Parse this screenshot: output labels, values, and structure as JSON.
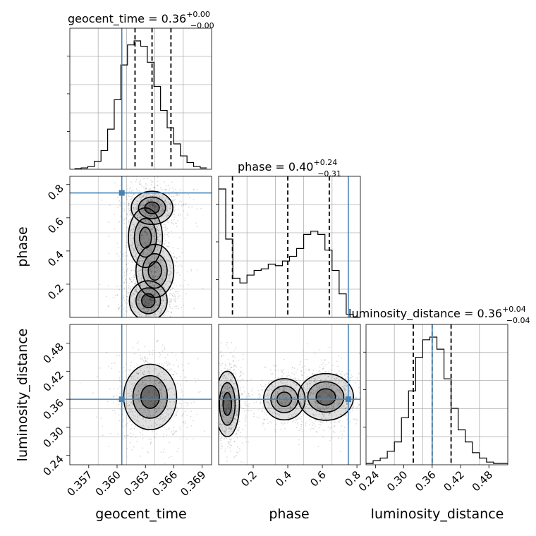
{
  "chart_data": [
    {
      "type": "histogram",
      "panel": "geocent_time marginal",
      "title": {
        "main": "geocent_time = 0.36",
        "sup": "+0.00",
        "sub": "−0.00"
      },
      "x_range": [
        0.355,
        0.37
      ],
      "bin_edges": [
        0.3555,
        0.3562,
        0.3569,
        0.3576,
        0.3583,
        0.359,
        0.3597,
        0.3604,
        0.3611,
        0.3618,
        0.3625,
        0.3632,
        0.3639,
        0.3646,
        0.3653,
        0.366,
        0.3667,
        0.3674,
        0.3681,
        0.3688,
        0.3695
      ],
      "counts": [
        0.005,
        0.01,
        0.02,
        0.06,
        0.14,
        0.3,
        0.52,
        0.78,
        0.93,
        0.96,
        0.92,
        0.8,
        0.62,
        0.44,
        0.31,
        0.19,
        0.1,
        0.05,
        0.02,
        0.01
      ],
      "truth": 0.3605,
      "quantiles": [
        0.3619,
        0.3637,
        0.3657
      ],
      "grid": true
    },
    {
      "type": "histogram",
      "panel": "phase marginal",
      "title": {
        "main": "phase = 0.40",
        "sup": "+0.24",
        "sub": "−0.31"
      },
      "x_range": [
        0.0,
        0.82
      ],
      "bin_edges": [
        0.0,
        0.041,
        0.082,
        0.123,
        0.164,
        0.205,
        0.246,
        0.287,
        0.328,
        0.369,
        0.41,
        0.451,
        0.492,
        0.533,
        0.574,
        0.615,
        0.656,
        0.697,
        0.738,
        0.779,
        0.82
      ],
      "counts": [
        0.82,
        0.5,
        0.25,
        0.22,
        0.27,
        0.3,
        0.31,
        0.34,
        0.33,
        0.36,
        0.39,
        0.44,
        0.53,
        0.55,
        0.53,
        0.43,
        0.3,
        0.15,
        0.02,
        0.0
      ],
      "truth": 0.75,
      "quantiles": [
        0.08,
        0.4,
        0.64
      ],
      "grid": true
    },
    {
      "type": "histogram",
      "panel": "luminosity_distance marginal",
      "title": {
        "main": "luminosity_distance = 0.36",
        "sup": "+0.04",
        "sub": "−0.04"
      },
      "x_range": [
        0.22,
        0.52
      ],
      "bin_edges": [
        0.22,
        0.235,
        0.25,
        0.265,
        0.28,
        0.295,
        0.31,
        0.325,
        0.34,
        0.355,
        0.37,
        0.385,
        0.4,
        0.415,
        0.43,
        0.445,
        0.46,
        0.475,
        0.49,
        0.505,
        0.52
      ],
      "counts": [
        0.01,
        0.03,
        0.05,
        0.1,
        0.17,
        0.35,
        0.55,
        0.8,
        0.93,
        0.95,
        0.86,
        0.64,
        0.42,
        0.26,
        0.17,
        0.09,
        0.05,
        0.02,
        0.01,
        0.01
      ],
      "truth": 0.36,
      "quantiles": [
        0.32,
        0.36,
        0.4
      ],
      "grid": true
    },
    {
      "type": "scatter",
      "panel": "phase vs geocent_time",
      "x_range": [
        0.355,
        0.37
      ],
      "y_range": [
        0.0,
        0.85
      ],
      "ylabel": "phase",
      "yticks": [
        0.2,
        0.4,
        0.6,
        0.8
      ],
      "truth": [
        0.3605,
        0.75
      ],
      "density_components": [
        {
          "mx": 0.3637,
          "my": 0.66,
          "sx": 0.0011,
          "sy": 0.05,
          "w": 0.9
        },
        {
          "mx": 0.363,
          "my": 0.48,
          "sx": 0.0009,
          "sy": 0.09,
          "w": 0.6
        },
        {
          "mx": 0.3633,
          "my": 0.1,
          "sx": 0.001,
          "sy": 0.06,
          "w": 1.0
        },
        {
          "mx": 0.364,
          "my": 0.28,
          "sx": 0.001,
          "sy": 0.08,
          "w": 0.4
        }
      ]
    },
    {
      "type": "scatter",
      "panel": "luminosity_distance vs geocent_time",
      "x_range": [
        0.355,
        0.37
      ],
      "y_range": [
        0.22,
        0.52
      ],
      "xlabel": "geocent_time",
      "ylabel": "luminosity_distance",
      "xticks": [
        "0.357",
        "0.360",
        "0.363",
        "0.366",
        "0.369"
      ],
      "xtick_values": [
        0.357,
        0.36,
        0.363,
        0.366,
        0.369
      ],
      "yticks": [
        "0.24",
        "0.30",
        "0.36",
        "0.42",
        "0.48"
      ],
      "ytick_values": [
        0.24,
        0.3,
        0.36,
        0.42,
        0.48
      ],
      "truth": [
        0.3605,
        0.36
      ],
      "density_components": [
        {
          "mx": 0.3635,
          "my": 0.365,
          "sx": 0.0014,
          "sy": 0.035,
          "w": 1.0
        }
      ]
    },
    {
      "type": "scatter",
      "panel": "luminosity_distance vs phase",
      "x_range": [
        0.0,
        0.82
      ],
      "y_range": [
        0.22,
        0.52
      ],
      "xlabel": "phase",
      "xticks": [
        "0.2",
        "0.4",
        "0.6",
        "0.8"
      ],
      "xtick_values": [
        0.2,
        0.4,
        0.6,
        0.8
      ],
      "truth": [
        0.75,
        0.36
      ],
      "density_components": [
        {
          "mx": 0.05,
          "my": 0.35,
          "sx": 0.035,
          "sy": 0.035,
          "w": 1.0
        },
        {
          "mx": 0.62,
          "my": 0.365,
          "sx": 0.08,
          "sy": 0.025,
          "w": 0.95
        },
        {
          "mx": 0.38,
          "my": 0.36,
          "sx": 0.06,
          "sy": 0.022,
          "w": 0.5
        }
      ]
    },
    {
      "type": "axis",
      "panel": "luminosity_distance bottom axis",
      "x_range": [
        0.22,
        0.52
      ],
      "xlabel": "luminosity_distance",
      "xticks": [
        "0.24",
        "0.30",
        "0.36",
        "0.42",
        "0.48"
      ],
      "xtick_values": [
        0.24,
        0.3,
        0.36,
        0.42,
        0.48
      ]
    }
  ],
  "colors": {
    "truth": "#4682b4",
    "hist": "#000000",
    "grid": "#b0b0b0",
    "frame": "#000000"
  }
}
